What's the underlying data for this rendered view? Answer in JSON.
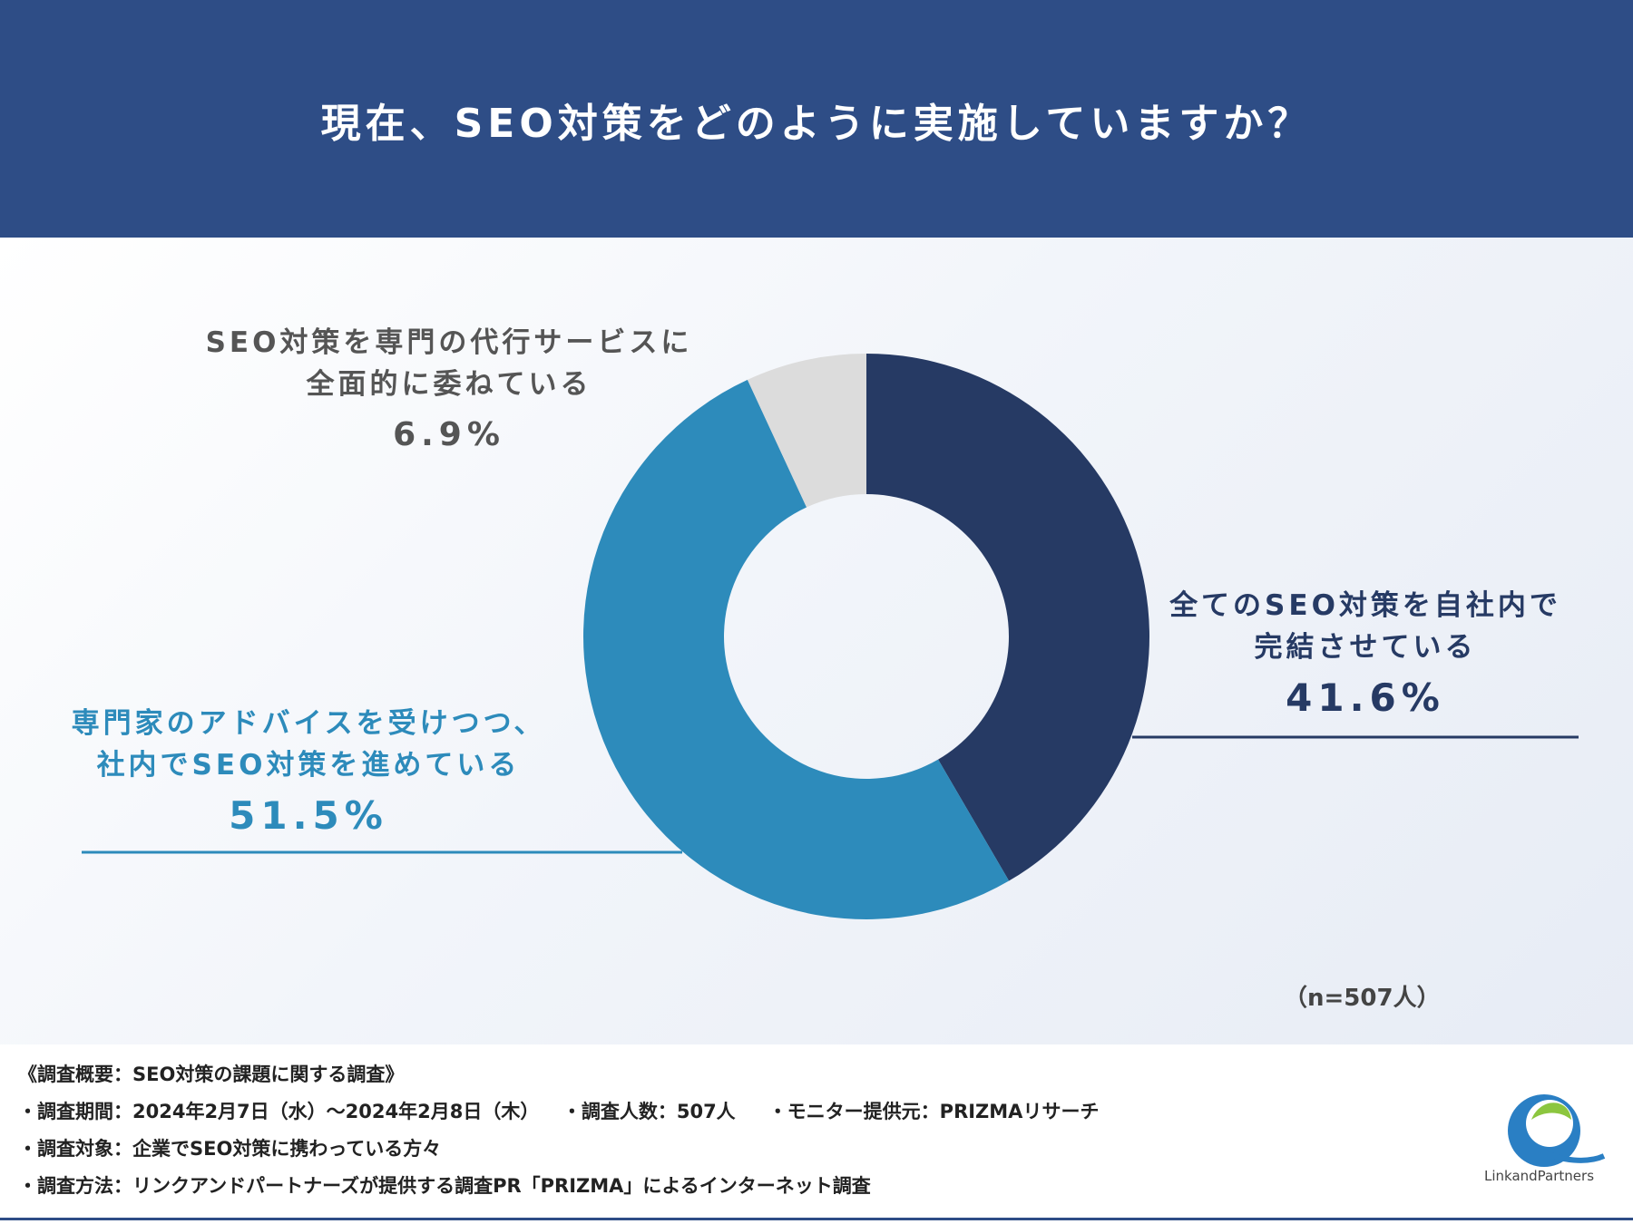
{
  "header": {
    "title": "現在、SEO対策をどのように実施していますか？"
  },
  "chart_data": {
    "type": "pie",
    "donut": true,
    "categories": [
      "全てのSEO対策を自社内で完結させている",
      "専門家のアドバイスを受けつつ、社内でSEO対策を進めている",
      "SEO対策を専門の代行サービスに全面的に委ねている"
    ],
    "values": [
      41.6,
      51.5,
      6.9
    ],
    "colors": [
      "#263a64",
      "#2d8bbb",
      "#dcdcdc"
    ],
    "start_angle_deg": 0,
    "direction": "clockwise"
  },
  "labels": {
    "outsourced": {
      "line1": "SEO対策を専門の代行サービスに",
      "line2": "全面的に委ねている",
      "pct": "6.9%"
    },
    "inhouse": {
      "line1": "全てのSEO対策を自社内で",
      "line2": "完結させている",
      "pct": "41.6%"
    },
    "advice": {
      "line1": "専門家のアドバイスを受けつつ、",
      "line2": "社内でSEO対策を進めている",
      "pct": "51.5%"
    }
  },
  "sample_size": "（n=507人）",
  "notes": {
    "overview": "《調査概要：SEO対策の課題に関する調査》",
    "period": "・調査期間：2024年2月7日（水）〜2024年2月8日（木）",
    "count": "・調査人数：507人",
    "monitor": "・モニター提供元：PRIZMAリサーチ",
    "target": "・調査対象：企業でSEO対策に携わっている方々",
    "method": "・調査方法：リンクアンドパートナーズが提供する調査PR「PRIZMA」によるインターネット調査"
  },
  "logo": {
    "text": "LinkandPartners"
  }
}
